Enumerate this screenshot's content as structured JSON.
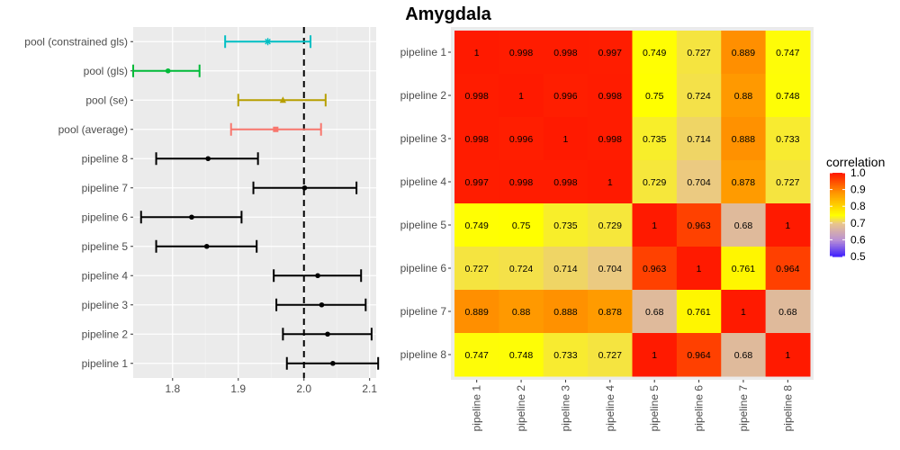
{
  "chart_data": [
    {
      "type": "scatter",
      "subtype": "forest-plot",
      "title": "",
      "xlabel": "",
      "ylabel": "",
      "xlim": [
        1.74,
        2.11
      ],
      "xticks": [
        1.8,
        1.9,
        2.0,
        2.1
      ],
      "xtick_labels": [
        "1.8",
        "1.9",
        "2.0",
        "2.1"
      ],
      "reference_line": 2.0,
      "grid": true,
      "background": "#ebebeb",
      "rows": [
        {
          "label": "pool (constrained gls)",
          "est": 1.945,
          "lo": 1.88,
          "hi": 2.01,
          "color": "#00bfc4",
          "shape": "asterisk"
        },
        {
          "label": "pool (gls)",
          "est": 1.793,
          "lo": 1.74,
          "hi": 1.841,
          "color": "#00ba38",
          "shape": "circle"
        },
        {
          "label": "pool (se)",
          "est": 1.968,
          "lo": 1.9,
          "hi": 2.033,
          "color": "#b79f00",
          "shape": "triangle"
        },
        {
          "label": "pool (average)",
          "est": 1.957,
          "lo": 1.889,
          "hi": 2.026,
          "color": "#f8766d",
          "shape": "square"
        },
        {
          "label": "pipeline 8",
          "est": 1.854,
          "lo": 1.775,
          "hi": 1.93,
          "color": "#000000",
          "shape": "circle"
        },
        {
          "label": "pipeline 7",
          "est": 2.001,
          "lo": 1.923,
          "hi": 2.08,
          "color": "#000000",
          "shape": "circle"
        },
        {
          "label": "pipeline 6",
          "est": 1.829,
          "lo": 1.752,
          "hi": 1.905,
          "color": "#000000",
          "shape": "circle"
        },
        {
          "label": "pipeline 5",
          "est": 1.852,
          "lo": 1.775,
          "hi": 1.928,
          "color": "#000000",
          "shape": "circle"
        },
        {
          "label": "pipeline 4",
          "est": 2.021,
          "lo": 1.954,
          "hi": 2.087,
          "color": "#000000",
          "shape": "circle"
        },
        {
          "label": "pipeline 3",
          "est": 2.027,
          "lo": 1.958,
          "hi": 2.094,
          "color": "#000000",
          "shape": "circle"
        },
        {
          "label": "pipeline 2",
          "est": 2.036,
          "lo": 1.968,
          "hi": 2.103,
          "color": "#000000",
          "shape": "circle"
        },
        {
          "label": "pipeline 1",
          "est": 2.044,
          "lo": 1.974,
          "hi": 2.113,
          "color": "#000000",
          "shape": "circle"
        }
      ]
    },
    {
      "type": "heatmap",
      "title": "Amygdala",
      "xlabel": "",
      "ylabel": "",
      "x_categories": [
        "pipeline 1",
        "pipeline 2",
        "pipeline 3",
        "pipeline 4",
        "pipeline 5",
        "pipeline 6",
        "pipeline 7",
        "pipeline 8"
      ],
      "y_categories": [
        "pipeline 1",
        "pipeline 2",
        "pipeline 3",
        "pipeline 4",
        "pipeline 5",
        "pipeline 6",
        "pipeline 7",
        "pipeline 8"
      ],
      "values": [
        [
          1,
          0.998,
          0.998,
          0.997,
          0.749,
          0.727,
          0.889,
          0.747
        ],
        [
          0.998,
          1,
          0.996,
          0.998,
          0.75,
          0.724,
          0.88,
          0.748
        ],
        [
          0.998,
          0.996,
          1,
          0.998,
          0.735,
          0.714,
          0.888,
          0.733
        ],
        [
          0.997,
          0.998,
          0.998,
          1,
          0.729,
          0.704,
          0.878,
          0.727
        ],
        [
          0.749,
          0.75,
          0.735,
          0.729,
          1,
          0.963,
          0.68,
          1
        ],
        [
          0.727,
          0.724,
          0.714,
          0.704,
          0.963,
          1,
          0.761,
          0.964
        ],
        [
          0.889,
          0.88,
          0.888,
          0.878,
          0.68,
          0.761,
          1,
          0.68
        ],
        [
          0.747,
          0.748,
          0.733,
          0.727,
          1,
          0.964,
          0.68,
          1
        ]
      ],
      "legend": {
        "title": "correlation",
        "position": "right",
        "ticks": [
          1.0,
          0.9,
          0.8,
          0.7,
          0.6,
          0.5
        ],
        "tick_labels": [
          "1.0",
          "0.9",
          "0.8",
          "0.7",
          "0.6",
          "0.5"
        ],
        "range": [
          0.5,
          1.0
        ],
        "color_stops": [
          {
            "value": 0.5,
            "color": "#3a1bff"
          },
          {
            "value": 0.6,
            "color": "#b98fd6"
          },
          {
            "value": 0.7,
            "color": "#e9c58c"
          },
          {
            "value": 0.75,
            "color": "#ffff00"
          },
          {
            "value": 0.88,
            "color": "#ff9900"
          },
          {
            "value": 1.0,
            "color": "#ff1a00"
          }
        ]
      }
    }
  ]
}
